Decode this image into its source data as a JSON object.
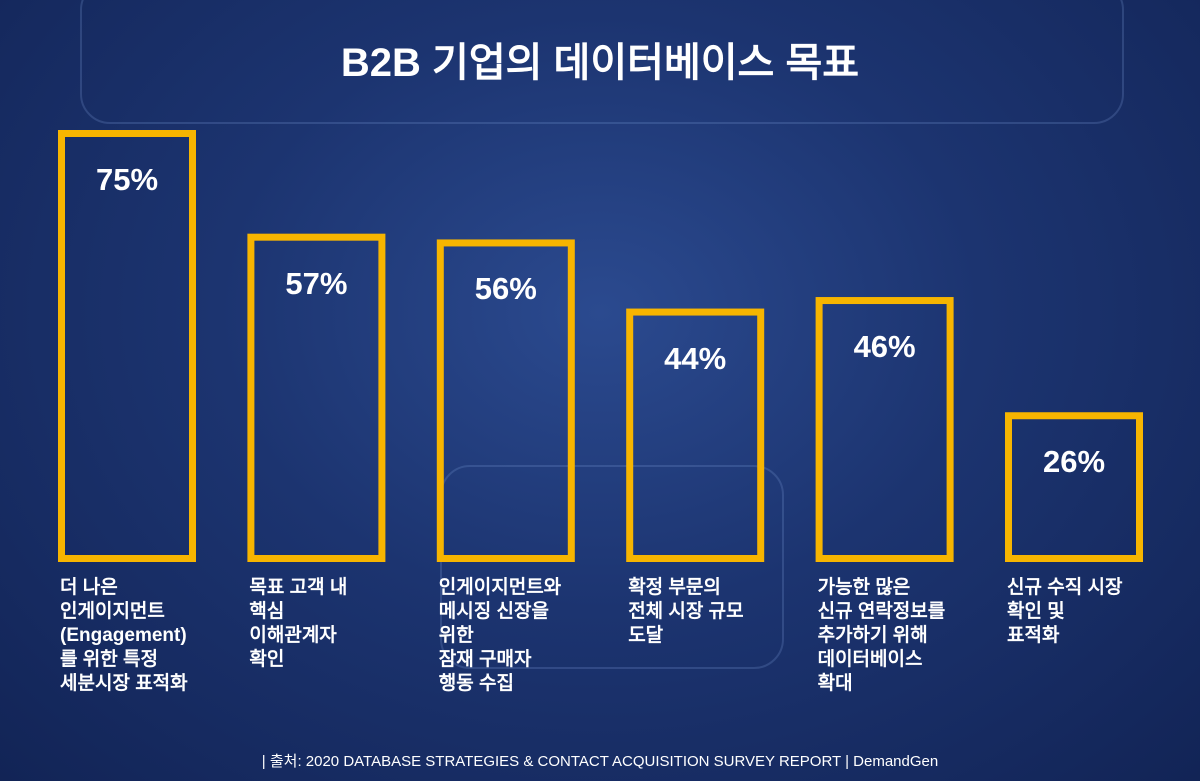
{
  "chart_data": {
    "type": "bar",
    "title": "B2B 기업의 데이터베이스 목표",
    "categories": [
      "더 나은\n인게이지먼트\n(Engagement)\n를 위한 특정\n세분시장 표적화",
      "목표 고객 내\n핵심\n이해관계자\n확인",
      "인게이지먼트와\n메시징 신장을\n위한\n잠재 구매자\n행동 수집",
      "확정 부문의\n전체 시장 규모\n도달",
      "가능한 많은\n신규 연락정보를\n추가하기 위해\n데이터베이스\n확대",
      "신규 수직 시장\n확인 및\n표적화"
    ],
    "values": [
      75,
      57,
      56,
      44,
      46,
      26
    ],
    "value_labels": [
      "75%",
      "57%",
      "56%",
      "44%",
      "46%",
      "26%"
    ],
    "color": "#f7b500",
    "source": "| 출처: 2020 DATABASE STRATEGIES & CONTACT ACQUISITION SURVEY REPORT | DemandGen"
  }
}
